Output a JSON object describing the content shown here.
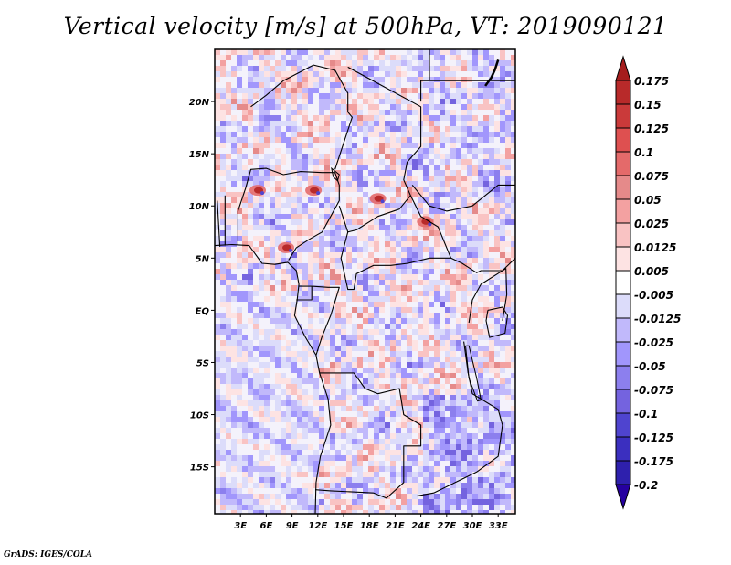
{
  "chart_data": {
    "type": "heatmap",
    "title": "Vertical velocity [m/s] at 500hPa, VT: 2019090121",
    "variable": "Vertical velocity",
    "units": "m/s",
    "level": "500hPa",
    "valid_time": "2019090121",
    "xlabel": "",
    "ylabel": "",
    "xlim": [
      0,
      35
    ],
    "ylim": [
      -19.5,
      25
    ],
    "x_ticks": [
      3,
      6,
      9,
      12,
      15,
      18,
      21,
      24,
      27,
      30,
      33
    ],
    "x_tick_labels": [
      "3E",
      "6E",
      "9E",
      "12E",
      "15E",
      "18E",
      "21E",
      "24E",
      "27E",
      "30E",
      "33E"
    ],
    "y_ticks": [
      20,
      15,
      10,
      5,
      0,
      -5,
      -10,
      -15
    ],
    "y_tick_labels": [
      "20N",
      "15N",
      "10N",
      "5N",
      "EQ",
      "5S",
      "10S",
      "15S"
    ],
    "colorbar": {
      "orientation": "vertical",
      "placement": "right",
      "extend": "both",
      "labels": [
        "0.175",
        "0.15",
        "0.125",
        "0.1",
        "0.075",
        "0.05",
        "0.025",
        "0.0125",
        "0.005",
        "-0.005",
        "-0.0125",
        "-0.025",
        "-0.05",
        "-0.075",
        "-0.1",
        "-0.125",
        "-0.175",
        "-0.2"
      ],
      "colors": [
        "#a51d1d",
        "#b82a2a",
        "#ca3a3a",
        "#de5050",
        "#e46a6a",
        "#e58a8a",
        "#f3a1a1",
        "#f9c3c3",
        "#fde3e3",
        "#ffffff",
        "#dcdcfa",
        "#c1b9fb",
        "#a196fc",
        "#8c7fee",
        "#7463df",
        "#4f44cf",
        "#3b2fbf",
        "#2e20ad",
        "#2600a0"
      ]
    },
    "features": {
      "map_region": "Central Africa (West/Central/East equatorial Africa)",
      "notable_maxima": [
        {
          "description": "Strong upward motion cluster",
          "lon": 24.5,
          "lat": 8.5
        },
        {
          "description": "Strong upward motion cluster",
          "lon": 19.0,
          "lat": 10.7
        },
        {
          "description": "Upward motion cluster",
          "lon": 8.3,
          "lat": 6.0
        },
        {
          "description": "Upward motion cluster",
          "lon": 5.0,
          "lat": 11.5
        },
        {
          "description": "Upward motion cluster",
          "lon": 11.5,
          "lat": 11.5
        }
      ],
      "notable_minima": [
        {
          "description": "Widespread subsidence",
          "region": "SE Africa near Zambia/Mozambique",
          "lon": 30,
          "lat": -15
        }
      ]
    }
  },
  "footer": "GrADS: IGES/COLA"
}
